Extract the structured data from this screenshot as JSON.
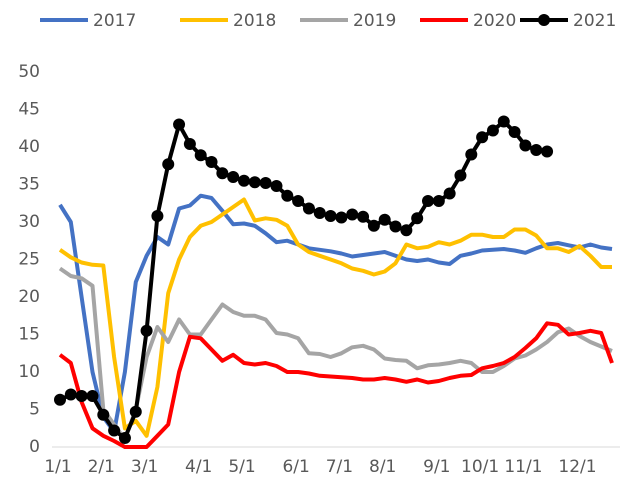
{
  "chart_data": {
    "type": "line",
    "categories": [
      "1/1",
      null,
      null,
      null,
      "2/1",
      null,
      null,
      null,
      "3/1",
      null,
      null,
      null,
      null,
      "4/1",
      null,
      null,
      null,
      "5/1",
      null,
      null,
      null,
      null,
      "6/1",
      null,
      null,
      null,
      "7/1",
      null,
      null,
      null,
      "8/1",
      null,
      null,
      null,
      null,
      "9/1",
      null,
      null,
      null,
      "10/1",
      null,
      null,
      null,
      "11/1",
      null,
      null,
      null,
      null,
      "12/1",
      null,
      null,
      null
    ],
    "series": [
      {
        "name": "2017",
        "color": "#4472c4",
        "markers": false,
        "values": [
          32.3,
          30,
          20,
          10,
          4,
          2,
          10,
          22,
          25.5,
          28,
          27,
          31.8,
          32.2,
          33.5,
          33.2,
          31.5,
          29.7,
          29.8,
          29.5,
          28.5,
          27.3,
          27.5,
          27,
          26.5,
          26.3,
          26.1,
          25.8,
          25.4,
          25.6,
          25.8,
          26,
          25.5,
          25,
          24.8,
          25,
          24.6,
          24.4,
          25.5,
          25.8,
          26.2,
          26.3,
          26.4,
          26.2,
          25.9,
          26.5,
          27,
          27.2,
          26.9,
          26.6,
          27,
          26.6,
          26.4
        ]
      },
      {
        "name": "2018",
        "color": "#ffc000",
        "markers": false,
        "values": [
          26.3,
          25.3,
          24.6,
          24.3,
          24.2,
          12,
          2.5,
          3.5,
          1.5,
          8,
          20.5,
          25,
          28,
          29.5,
          30,
          31,
          32,
          33,
          30.2,
          30.5,
          30.3,
          29.5,
          27,
          26,
          25.5,
          25,
          24.5,
          23.8,
          23.5,
          23,
          23.4,
          24.5,
          27,
          26.5,
          26.7,
          27.3,
          27,
          27.5,
          28.3,
          28.3,
          28,
          28,
          29,
          29,
          28.2,
          26.5,
          26.5,
          26,
          26.8,
          25.5,
          24,
          24
        ]
      },
      {
        "name": "2019",
        "color": "#a5a5a5",
        "markers": false,
        "values": [
          23.8,
          22.8,
          22.5,
          21.5,
          5,
          3,
          1,
          5,
          12,
          16,
          14,
          17,
          15,
          15,
          17,
          19,
          18,
          17.5,
          17.5,
          17,
          15.2,
          15,
          14.5,
          12.5,
          12.4,
          12,
          12.5,
          13.3,
          13.5,
          13,
          11.8,
          11.6,
          11.5,
          10.5,
          10.9,
          11,
          11.2,
          11.5,
          11.2,
          10,
          10,
          10.8,
          11.8,
          12.2,
          13,
          14,
          15.3,
          15.8,
          14.8,
          14,
          13.4,
          12.8
        ]
      },
      {
        "name": "2020",
        "color": "#ff0000",
        "markers": false,
        "values": [
          12.3,
          11.2,
          6,
          2.5,
          1.5,
          0.8,
          0,
          0,
          0,
          1.5,
          3,
          10,
          14.7,
          14.5,
          13,
          11.5,
          12.3,
          11.2,
          11,
          11.2,
          10.8,
          10,
          10,
          9.8,
          9.5,
          9.4,
          9.3,
          9.2,
          9,
          9,
          9.2,
          9,
          8.7,
          9,
          8.6,
          8.8,
          9.2,
          9.5,
          9.6,
          10.5,
          10.8,
          11.2,
          12,
          13.2,
          14.5,
          16.5,
          16.3,
          15,
          15.2,
          15.5,
          15.2,
          11.2
        ]
      },
      {
        "name": "2021",
        "color": "#000000",
        "markers": true,
        "values": [
          6.3,
          7,
          6.8,
          6.8,
          4.3,
          2.2,
          1.2,
          4.7,
          15.5,
          30.8,
          37.7,
          43,
          40.4,
          38.9,
          38,
          36.5,
          36,
          35.5,
          35.3,
          35.2,
          34.8,
          33.5,
          32.8,
          31.8,
          31.2,
          30.8,
          30.6,
          31,
          30.7,
          29.5,
          30.3,
          29.4,
          28.9,
          30.5,
          32.8,
          32.8,
          33.8,
          36.2,
          39,
          41.3,
          42.2,
          43.4,
          42,
          40.2,
          39.6,
          39.4,
          null,
          null,
          null,
          null,
          null,
          null
        ]
      }
    ],
    "ylim": [
      0,
      50
    ],
    "yticks": [
      0,
      5,
      10,
      15,
      20,
      25,
      30,
      35,
      40,
      45,
      50
    ],
    "grid": false,
    "legend": "top"
  }
}
